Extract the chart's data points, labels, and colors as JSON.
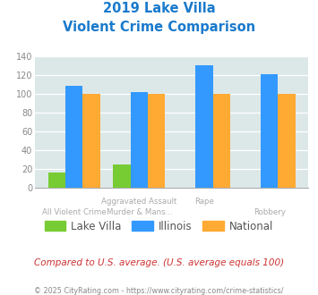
{
  "title_line1": "2019 Lake Villa",
  "title_line2": "Violent Crime Comparison",
  "line1_labels": [
    "",
    "Aggravated Assault",
    "Rape",
    ""
  ],
  "line2_labels": [
    "All Violent Crime",
    "Murder & Mans...",
    "",
    "Robbery"
  ],
  "lake_villa": [
    16,
    24,
    0,
    0
  ],
  "illinois": [
    108,
    102,
    130,
    121
  ],
  "national": [
    100,
    100,
    100,
    100
  ],
  "color_lake_villa": "#77cc33",
  "color_illinois": "#3399ff",
  "color_national": "#ffaa33",
  "ylim": [
    0,
    140
  ],
  "yticks": [
    0,
    20,
    40,
    60,
    80,
    100,
    120,
    140
  ],
  "plot_bg": "#dce8e8",
  "title_color": "#1a7acc",
  "footer_text": "Compared to U.S. average. (U.S. average equals 100)",
  "copyright_text": "© 2025 CityRating.com - https://www.cityrating.com/crime-statistics/",
  "footer_color": "#cc3333",
  "copyright_color": "#888888"
}
